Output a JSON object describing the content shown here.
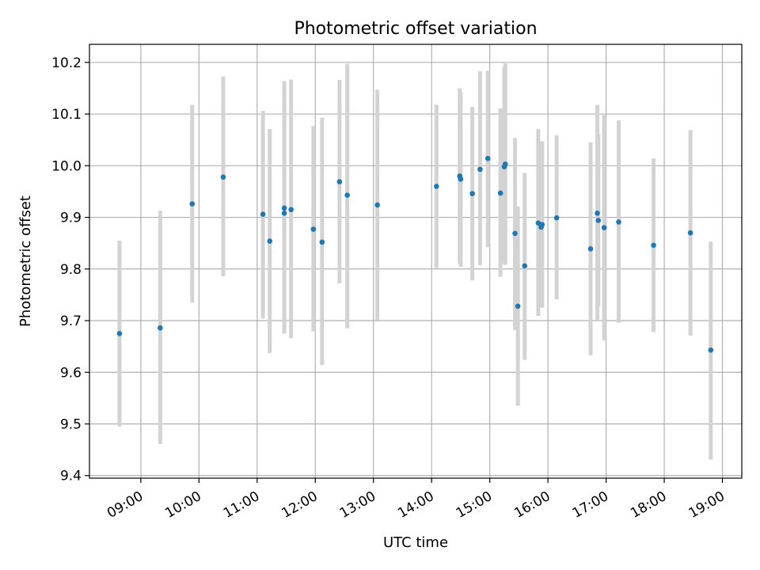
{
  "chart_data": {
    "type": "scatter",
    "title": "Photometric offset variation",
    "xlabel": "UTC time",
    "ylabel": "Photometric offset",
    "xlim": [
      "08:07",
      "19:20"
    ],
    "ylim": [
      9.395,
      10.235
    ],
    "grid": true,
    "x_ticks": [
      "09:00",
      "10:00",
      "11:00",
      "12:00",
      "13:00",
      "14:00",
      "15:00",
      "16:00",
      "17:00",
      "18:00",
      "19:00"
    ],
    "y_ticks": [
      9.4,
      9.5,
      9.6,
      9.7,
      9.8,
      9.9,
      10.0,
      10.1,
      10.2
    ],
    "y_tick_labels": [
      "9.4",
      "9.5",
      "9.6",
      "9.7",
      "9.8",
      "9.9",
      "10.0",
      "10.1",
      "10.2"
    ],
    "colors": {
      "point": "#1f77b4",
      "errorbar": "#d3d3d3",
      "grid": "#b0b0b0"
    },
    "points": [
      {
        "t": "08:38",
        "y": 9.675,
        "lo": 9.495,
        "hi": 9.855
      },
      {
        "t": "09:20",
        "y": 9.686,
        "lo": 9.461,
        "hi": 9.913
      },
      {
        "t": "09:53",
        "y": 9.926,
        "lo": 9.735,
        "hi": 10.118
      },
      {
        "t": "10:25",
        "y": 9.978,
        "lo": 9.786,
        "hi": 10.173
      },
      {
        "t": "11:06",
        "y": 9.906,
        "lo": 9.704,
        "hi": 10.106
      },
      {
        "t": "11:13",
        "y": 9.854,
        "lo": 9.637,
        "hi": 10.071
      },
      {
        "t": "11:28",
        "y": 9.908,
        "lo": 9.675,
        "hi": 10.164
      },
      {
        "t": "11:28",
        "y": 9.918,
        "lo": 9.675,
        "hi": 10.14
      },
      {
        "t": "11:35",
        "y": 9.915,
        "lo": 9.666,
        "hi": 10.167
      },
      {
        "t": "11:58",
        "y": 9.877,
        "lo": 9.679,
        "hi": 10.077
      },
      {
        "t": "12:07",
        "y": 9.852,
        "lo": 9.614,
        "hi": 10.093
      },
      {
        "t": "12:25",
        "y": 9.969,
        "lo": 9.772,
        "hi": 10.166
      },
      {
        "t": "12:33",
        "y": 9.943,
        "lo": 9.685,
        "hi": 10.197
      },
      {
        "t": "13:04",
        "y": 9.924,
        "lo": 9.701,
        "hi": 10.147
      },
      {
        "t": "14:05",
        "y": 9.96,
        "lo": 9.802,
        "hi": 10.118
      },
      {
        "t": "14:29",
        "y": 9.98,
        "lo": 9.81,
        "hi": 10.15
      },
      {
        "t": "14:30",
        "y": 9.974,
        "lo": 9.804,
        "hi": 10.144
      },
      {
        "t": "14:42",
        "y": 9.946,
        "lo": 9.778,
        "hi": 10.114
      },
      {
        "t": "14:50",
        "y": 9.993,
        "lo": 9.807,
        "hi": 10.183
      },
      {
        "t": "14:58",
        "y": 10.014,
        "lo": 9.842,
        "hi": 10.184
      },
      {
        "t": "15:11",
        "y": 9.947,
        "lo": 9.785,
        "hi": 10.111
      },
      {
        "t": "15:15",
        "y": 9.998,
        "lo": 9.81,
        "hi": 10.191
      },
      {
        "t": "15:16",
        "y": 10.003,
        "lo": 9.808,
        "hi": 10.198
      },
      {
        "t": "15:26",
        "y": 9.869,
        "lo": 9.682,
        "hi": 10.054
      },
      {
        "t": "15:29",
        "y": 9.728,
        "lo": 9.535,
        "hi": 9.921
      },
      {
        "t": "15:36",
        "y": 9.806,
        "lo": 9.624,
        "hi": 9.986
      },
      {
        "t": "15:50",
        "y": 9.889,
        "lo": 9.709,
        "hi": 10.071
      },
      {
        "t": "15:53",
        "y": 9.881,
        "lo": 9.725,
        "hi": 10.047
      },
      {
        "t": "15:54",
        "y": 9.886,
        "lo": 9.725,
        "hi": 10.047
      },
      {
        "t": "16:09",
        "y": 9.899,
        "lo": 9.741,
        "hi": 10.059
      },
      {
        "t": "16:44",
        "y": 9.839,
        "lo": 9.633,
        "hi": 10.045
      },
      {
        "t": "16:51",
        "y": 9.908,
        "lo": 9.7,
        "hi": 10.118
      },
      {
        "t": "16:52",
        "y": 9.894,
        "lo": 9.728,
        "hi": 10.06
      },
      {
        "t": "16:58",
        "y": 9.88,
        "lo": 9.662,
        "hi": 10.098
      },
      {
        "t": "17:13",
        "y": 9.891,
        "lo": 9.696,
        "hi": 10.088
      },
      {
        "t": "17:49",
        "y": 9.846,
        "lo": 9.678,
        "hi": 10.014
      },
      {
        "t": "18:27",
        "y": 9.87,
        "lo": 9.671,
        "hi": 10.069
      },
      {
        "t": "18:48",
        "y": 9.643,
        "lo": 9.431,
        "hi": 9.853
      }
    ]
  }
}
